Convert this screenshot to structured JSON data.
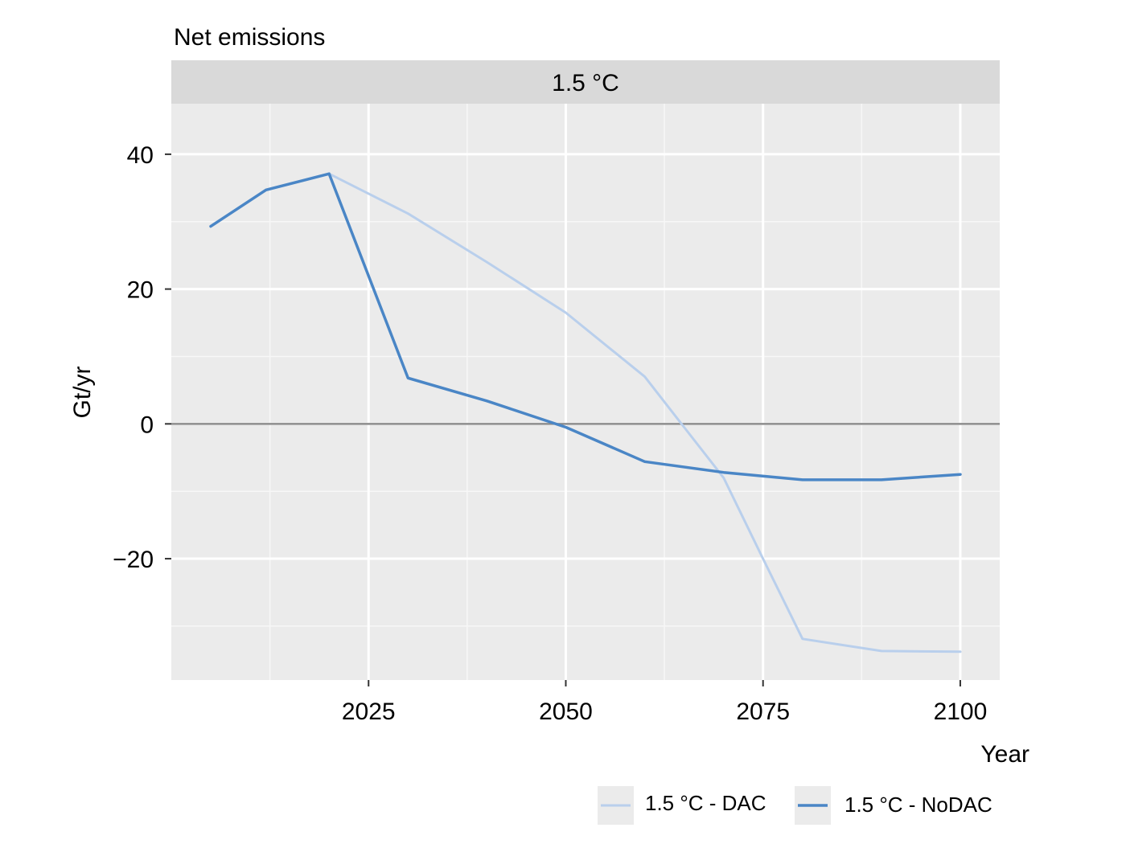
{
  "chart_data": {
    "type": "line",
    "title": "Net emissions",
    "facet_label": "1.5 °C",
    "xlabel": "Year",
    "ylabel": "Gt/yr",
    "xlim": [
      2000,
      2105
    ],
    "ylim": [
      -38,
      47.5
    ],
    "x_ticks": [
      2025,
      2050,
      2075,
      2100
    ],
    "x_tick_labels": [
      "2025",
      "2050",
      "2075",
      "2100"
    ],
    "y_ticks": [
      -20,
      0,
      20,
      40
    ],
    "y_tick_labels": [
      "−20",
      "0",
      "20",
      "40"
    ],
    "x_minor_ticks": [
      2012.5,
      2037.5,
      2062.5,
      2087.5
    ],
    "y_minor_ticks": [
      -30,
      -10,
      10,
      30
    ],
    "zero_line": true,
    "grid": true,
    "legend_position": "bottom-right",
    "series": [
      {
        "name": "1.5 °C - DAC",
        "color": "#b9cfec",
        "x": [
          2005,
          2012,
          2020,
          2030,
          2040,
          2050,
          2060,
          2065,
          2070,
          2075,
          2080,
          2090,
          2100
        ],
        "y": [
          29.3,
          34.7,
          37.1,
          31.2,
          24.0,
          16.5,
          7.0,
          -0.5,
          -8.0,
          -20.0,
          -31.9,
          -33.7,
          -33.8
        ]
      },
      {
        "name": "1.5 °C - NoDAC",
        "color": "#4a86c6",
        "x": [
          2005,
          2012,
          2020,
          2030,
          2040,
          2050,
          2060,
          2070,
          2080,
          2090,
          2100
        ],
        "y": [
          29.3,
          34.7,
          37.1,
          6.8,
          3.4,
          -0.5,
          -5.6,
          -7.2,
          -8.3,
          -8.3,
          -7.5
        ]
      }
    ]
  }
}
